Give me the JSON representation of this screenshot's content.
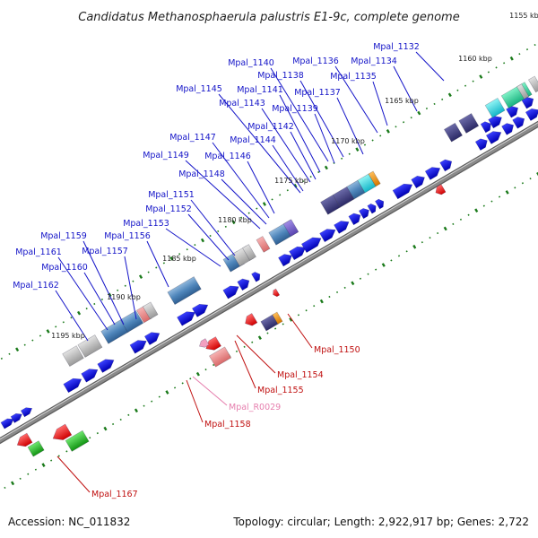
{
  "title": "Candidatus Methanosphaerula palustris E1-9c, complete genome",
  "footer": {
    "accession": "Accession: NC_011832",
    "topology": "Topology: circular; Length: 2,922,917 bp; Genes: 2,722"
  },
  "colors": {
    "backbone": "#8a8a8a",
    "forward_cds": "#0a10d8",
    "reverse_cds": "#ee1010",
    "rna": "#f2a0c0",
    "tick": "#1a7a1a",
    "label_blue": "#1414c8",
    "label_red": "#c01010",
    "label_pink": "#e67fae"
  },
  "scale_labels": [
    "1155 kbp",
    "1160 kbp",
    "1165 kbp",
    "1170 kbp",
    "1175 kbp",
    "1180 kbp",
    "1185 kbp",
    "1190 kbp",
    "1195 kbp"
  ],
  "gene_labels": [
    {
      "name": "Mpal_1132",
      "strand": "forward"
    },
    {
      "name": "Mpal_1134",
      "strand": "forward"
    },
    {
      "name": "Mpal_1135",
      "strand": "forward"
    },
    {
      "name": "Mpal_1136",
      "strand": "forward"
    },
    {
      "name": "Mpal_1137",
      "strand": "forward"
    },
    {
      "name": "Mpal_1138",
      "strand": "forward"
    },
    {
      "name": "Mpal_1139",
      "strand": "forward"
    },
    {
      "name": "Mpal_1140",
      "strand": "forward"
    },
    {
      "name": "Mpal_1141",
      "strand": "forward"
    },
    {
      "name": "Mpal_1142",
      "strand": "forward"
    },
    {
      "name": "Mpal_1143",
      "strand": "forward"
    },
    {
      "name": "Mpal_1144",
      "strand": "forward"
    },
    {
      "name": "Mpal_1145",
      "strand": "forward"
    },
    {
      "name": "Mpal_1146",
      "strand": "forward"
    },
    {
      "name": "Mpal_1147",
      "strand": "forward"
    },
    {
      "name": "Mpal_1148",
      "strand": "forward"
    },
    {
      "name": "Mpal_1149",
      "strand": "forward"
    },
    {
      "name": "Mpal_1151",
      "strand": "forward"
    },
    {
      "name": "Mpal_1152",
      "strand": "forward"
    },
    {
      "name": "Mpal_1153",
      "strand": "forward"
    },
    {
      "name": "Mpal_1156",
      "strand": "forward"
    },
    {
      "name": "Mpal_1157",
      "strand": "forward"
    },
    {
      "name": "Mpal_1159",
      "strand": "forward"
    },
    {
      "name": "Mpal_1160",
      "strand": "forward"
    },
    {
      "name": "Mpal_1161",
      "strand": "forward"
    },
    {
      "name": "Mpal_1162",
      "strand": "forward"
    },
    {
      "name": "Mpal_1150",
      "strand": "reverse"
    },
    {
      "name": "Mpal_1154",
      "strand": "reverse"
    },
    {
      "name": "Mpal_1155",
      "strand": "reverse"
    },
    {
      "name": "Mpal_R0029",
      "strand": "rna"
    },
    {
      "name": "Mpal_1158",
      "strand": "reverse"
    },
    {
      "name": "Mpal_1167",
      "strand": "reverse"
    }
  ]
}
